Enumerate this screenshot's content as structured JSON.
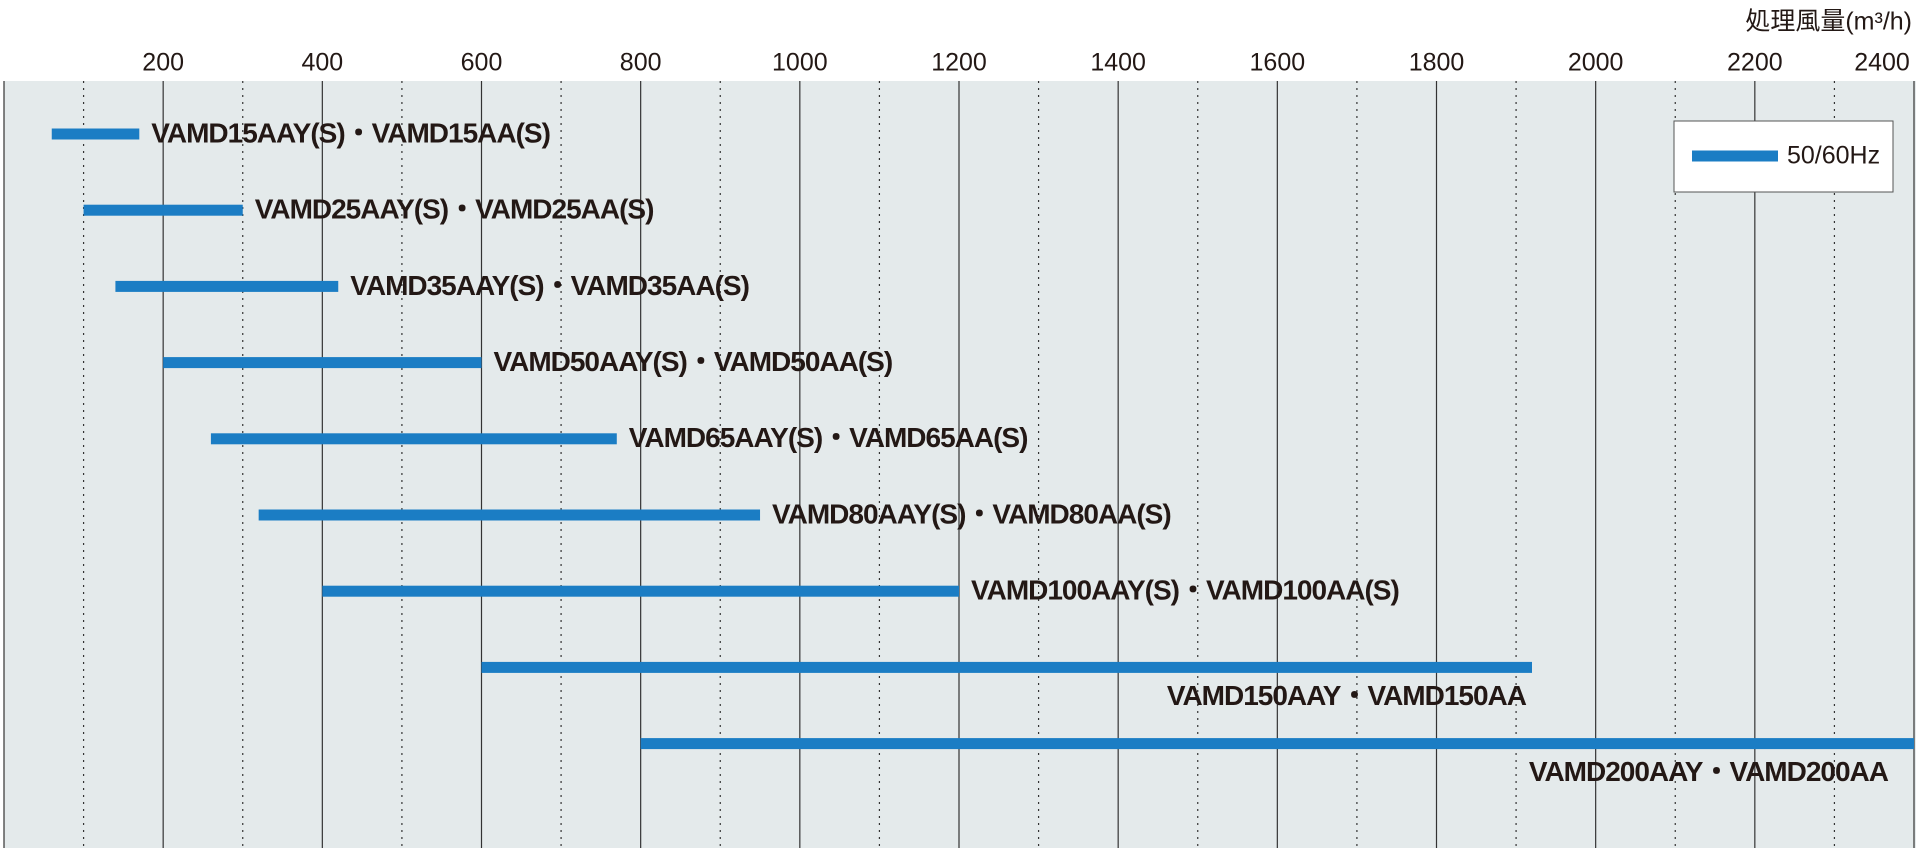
{
  "chart_data": {
    "type": "range_bar",
    "x_label": "処理風量(m³/h)",
    "categories": [
      "VAMD15AAY(S)・VAMD15AA(S)",
      "VAMD25AAY(S)・VAMD25AA(S)",
      "VAMD35AAY(S)・VAMD35AA(S)",
      "VAMD50AAY(S)・VAMD50AA(S)",
      "VAMD65AAY(S)・VAMD65AA(S)",
      "VAMD80AAY(S)・VAMD80AA(S)",
      "VAMD100AAY(S)・VAMD100AA(S)",
      "VAMD150AAY・VAMD150AA",
      "VAMD200AAY・VAMD200AA"
    ],
    "series": [
      {
        "name": "50/60Hz",
        "color": "#1b7dc4",
        "low": [
          60,
          100,
          140,
          200,
          260,
          320,
          400,
          600,
          800
        ],
        "high": [
          170,
          300,
          420,
          600,
          770,
          950,
          1200,
          1920,
          2400
        ]
      }
    ],
    "xlim": [
      0,
      2400
    ],
    "xticks": [
      200,
      400,
      600,
      800,
      1000,
      1200,
      1400,
      1600,
      1800,
      2000,
      2200,
      2400
    ],
    "minor_xticks": [
      100,
      300,
      500,
      700,
      900,
      1100,
      1300,
      1500,
      1700,
      1900,
      2100,
      2300
    ],
    "grid": true,
    "legend": "upper right"
  }
}
